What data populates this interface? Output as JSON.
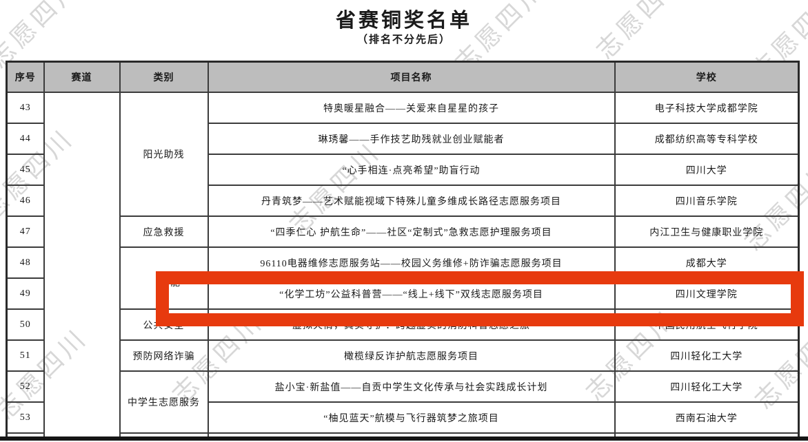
{
  "page": {
    "title": "省赛铜奖名单",
    "subtitle": "（排名不分先后）",
    "watermark_text": "志愿四川"
  },
  "colors": {
    "highlight": "#e73a0e",
    "header_bg": "#bdbdbd",
    "watermark": "#d7d7d7"
  },
  "table": {
    "columns": [
      "序号",
      "赛道",
      "类别",
      "项目名称",
      "学校"
    ],
    "track_label": "",
    "categories": [
      {
        "label": "阳光助残",
        "start": 43,
        "span": 4
      },
      {
        "label": "应急救援",
        "start": 47,
        "span": 1
      },
      {
        "label": "能",
        "start": 48,
        "span": 2,
        "partially_hidden": true
      },
      {
        "label": "公共安全",
        "start": 50,
        "span": 1
      },
      {
        "label": "预防网络诈骗",
        "start": 51,
        "span": 1
      },
      {
        "label": "中学生志愿服务",
        "start": 52,
        "span": 2
      }
    ],
    "rows": [
      {
        "no": "43",
        "project": "特奥暖星融合——关爱来自星星的孩子",
        "school": "电子科技大学成都学院"
      },
      {
        "no": "44",
        "project": "琳琇馨——手作技艺助残就业创业赋能者",
        "school": "成都纺织高等专科学校"
      },
      {
        "no": "45",
        "project": "“心手相连·点亮希望”助盲行动",
        "school": "四川大学"
      },
      {
        "no": "46",
        "project": "丹青筑梦——艺术赋能视域下特殊儿童多维成长路径志愿服务项目",
        "school": "四川音乐学院"
      },
      {
        "no": "47",
        "project": "“四季仁心 护航生命”——社区“定制式”急救志愿护理服务项目",
        "school": "内江卫生与健康职业学院"
      },
      {
        "no": "48",
        "project": "96110电器维修志愿服务站——校园义务维修+防诈骗志愿服务项目",
        "school": "成都大学"
      },
      {
        "no": "49",
        "project": "“化学工坊”公益科普营——“线上+线下”双线志愿服务项目",
        "school": "四川文理学院",
        "highlighted": true
      },
      {
        "no": "50",
        "project": "虚拟火情，真实守护：跨越虚实的消防科普志愿之旅",
        "school": "中国民用航空飞行学院"
      },
      {
        "no": "51",
        "project": "橄榄绿反诈护航志愿服务项目",
        "school": "四川轻化工大学"
      },
      {
        "no": "52",
        "project": "盐小宝·新盐值——自贡中学生文化传承与社会实践成长计划",
        "school": "四川轻化工大学"
      },
      {
        "no": "53",
        "project": "“柚见蓝天”航模与飞行器筑梦之旅项目",
        "school": "西南石油大学"
      }
    ]
  }
}
